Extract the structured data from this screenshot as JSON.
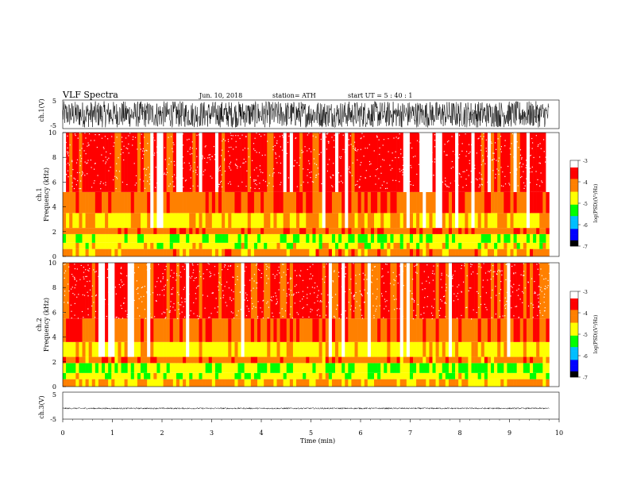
{
  "header": {
    "title": "VLF  Spectra",
    "date": "Jun. 10, 2018",
    "station": "station= ATH",
    "start_ut": "start  UT  =    5  : 40 : 1"
  },
  "colorbar": {
    "label": "log(PSD)(V²/Hz)",
    "ticks": [
      "-3",
      "-4",
      "-5",
      "-6",
      "-7"
    ],
    "range": [
      -7,
      -3
    ],
    "colors": [
      "#000000",
      "#0000ff",
      "#00bfff",
      "#00ff00",
      "#ffff00",
      "#ff8000",
      "#ff0000",
      "#ffffff"
    ]
  },
  "chart_data": [
    {
      "type": "line",
      "panel": "waveform",
      "ylabel": "ch.1(V)",
      "ylim": [
        -5,
        5
      ],
      "yticks": [
        "5",
        "-5"
      ],
      "xlim": [
        0,
        10
      ],
      "description_note": "",
      "series": [
        {
          "values": [
            -4.6,
            4.7,
            -4.5,
            4.6,
            -4.4,
            4.5,
            -4.7,
            4.6
          ]
        }
      ],
      "color": "#000000"
    },
    {
      "type": "heatmap",
      "panel": "spectrogram",
      "channel_label": "ch.1",
      "ylabel": "Frequency  (kHz)",
      "ylim": [
        0,
        10
      ],
      "yticks": [
        "0",
        "2",
        "4",
        "6",
        "8",
        "10"
      ],
      "xlim": [
        0,
        10
      ],
      "data_end_min": 9.8,
      "bands": [
        {
          "f_low": 0.0,
          "f_high": 0.6,
          "level": -4.2
        },
        {
          "f_low": 0.6,
          "f_high": 1.1,
          "level": -4.7
        },
        {
          "f_low": 1.1,
          "f_high": 1.8,
          "level": -4.9
        },
        {
          "f_low": 1.8,
          "f_high": 2.3,
          "level": -4.0
        },
        {
          "f_low": 2.3,
          "f_high": 3.5,
          "level": -4.5
        },
        {
          "f_low": 3.5,
          "f_high": 5.2,
          "level": -3.9
        },
        {
          "f_low": 5.2,
          "f_high": 10.0,
          "level": -3.6
        }
      ]
    },
    {
      "type": "heatmap",
      "panel": "spectrogram",
      "channel_label": "ch.2",
      "ylabel": "Frequency  (kHz)",
      "ylim": [
        0,
        10
      ],
      "yticks": [
        "0",
        "2",
        "4",
        "6",
        "8",
        "10"
      ],
      "xlim": [
        0,
        10
      ],
      "data_end_min": 9.8,
      "bands": [
        {
          "f_low": 0.0,
          "f_high": 0.6,
          "level": -4.3
        },
        {
          "f_low": 0.6,
          "f_high": 1.1,
          "level": -4.8
        },
        {
          "f_low": 1.1,
          "f_high": 1.9,
          "level": -5.0
        },
        {
          "f_low": 1.9,
          "f_high": 2.4,
          "level": -4.1
        },
        {
          "f_low": 2.4,
          "f_high": 3.6,
          "level": -4.6
        },
        {
          "f_low": 3.6,
          "f_high": 5.5,
          "level": -4.0
        },
        {
          "f_low": 5.5,
          "f_high": 10.0,
          "level": -3.7
        }
      ]
    },
    {
      "type": "line",
      "panel": "waveform",
      "ylabel": "ch.3(V)",
      "ylim": [
        -5,
        5
      ],
      "yticks": [
        "5",
        "-5"
      ],
      "xlim": [
        0,
        10
      ],
      "xlabel": "Time  (min)",
      "xticks": [
        "0",
        "1",
        "2",
        "3",
        "4",
        "5",
        "6",
        "7",
        "8",
        "9",
        "10"
      ],
      "series": [
        {
          "values": [
            -1.1,
            -0.9,
            -1.0,
            -1.2,
            -0.9,
            -1.0,
            -1.1,
            -1.0
          ]
        }
      ],
      "color": "#000000"
    }
  ]
}
